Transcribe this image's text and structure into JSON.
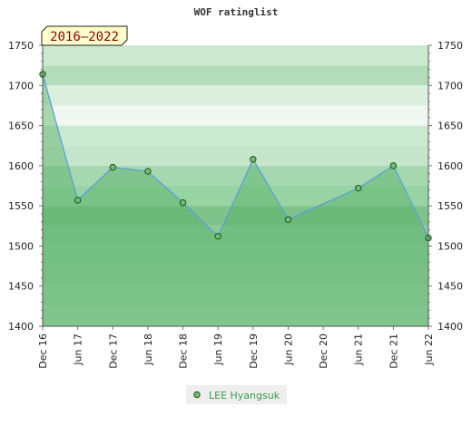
{
  "chart_data": {
    "type": "area",
    "title": "WOF ratinglist",
    "badge": "2016–2022",
    "xlabel": "",
    "ylabel": "",
    "ylim": [
      1400,
      1750
    ],
    "yticks": [
      1400,
      1450,
      1500,
      1550,
      1600,
      1650,
      1700,
      1750
    ],
    "xticks": [
      "Dec 16",
      "Jun 17",
      "Dec 17",
      "Jun 18",
      "Dec 18",
      "Jun 19",
      "Dec 19",
      "Jun 20",
      "Dec 20",
      "Jun 21",
      "Dec 21",
      "Jun 22"
    ],
    "legend_position": "bottom",
    "series": [
      {
        "name": "LEE Hyangsuk",
        "x": [
          "Dec 16",
          "Jun 17",
          "Dec 17",
          "Jun 18",
          "Dec 18",
          "Jun 19",
          "Dec 19",
          "Jun 20",
          "Jun 21",
          "Dec 21",
          "Jun 22"
        ],
        "values": [
          1714,
          1557,
          1598,
          1593,
          1554,
          1512,
          1608,
          1533,
          1572,
          1600,
          1510
        ]
      }
    ],
    "colors": {
      "line": "#5aa0d8",
      "fill": "#55b065",
      "marker": "#6fbf6f",
      "marker_stroke": "#1f4f1f"
    }
  }
}
